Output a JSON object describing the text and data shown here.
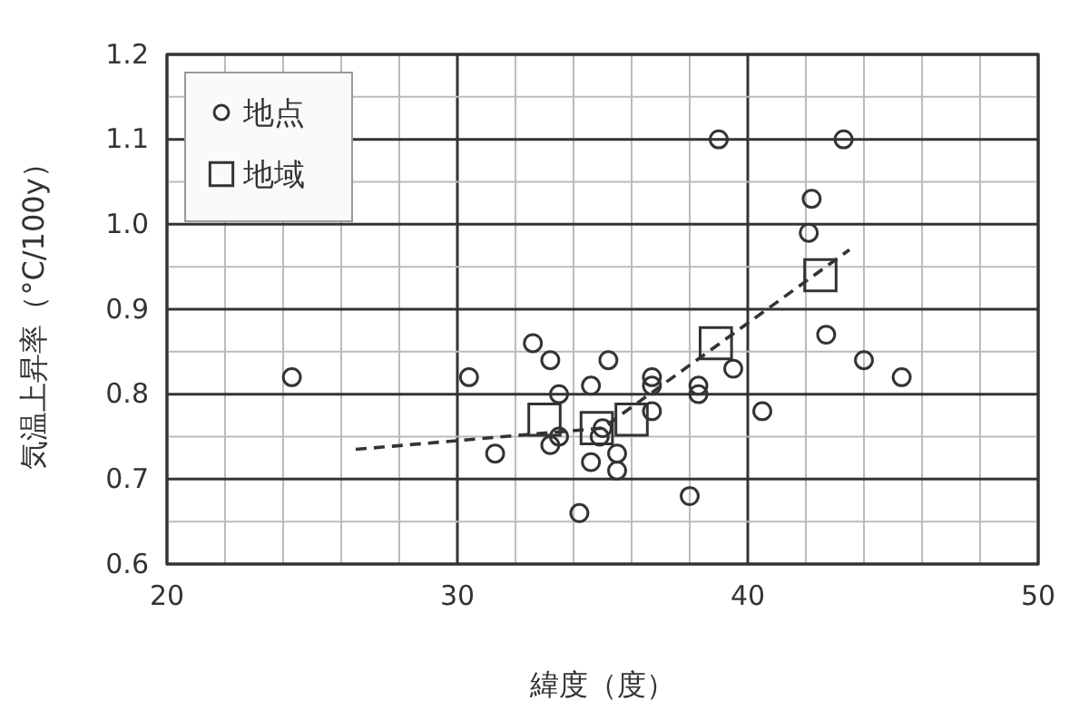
{
  "chart_data": {
    "type": "scatter",
    "xlabel": "緯度（度）",
    "ylabel": "気温上昇率（°C/100y）",
    "xlim": [
      20,
      50
    ],
    "ylim": [
      0.6,
      1.2
    ],
    "xticks": [
      20,
      {
        "value": 22,
        "label": null
      },
      {
        "value": 24,
        "label": null
      },
      {
        "value": 26,
        "label": null
      },
      {
        "value": 28,
        "label": null
      },
      30,
      {
        "value": 32,
        "label": null
      },
      {
        "value": 34,
        "label": null
      },
      {
        "value": 36,
        "label": null
      },
      {
        "value": 38,
        "label": null
      },
      40,
      {
        "value": 42,
        "label": null
      },
      {
        "value": 44,
        "label": null
      },
      {
        "value": 46,
        "label": null
      },
      {
        "value": 48,
        "label": null
      },
      50
    ],
    "yticks": [
      0.6,
      {
        "value": 0.65,
        "label": null
      },
      0.7,
      {
        "value": 0.75,
        "label": null
      },
      0.8,
      {
        "value": 0.85,
        "label": null
      },
      0.9,
      {
        "value": 0.95,
        "label": null
      },
      {
        "value": 1.0,
        "label": "1.0"
      },
      {
        "value": 1.05,
        "label": null
      },
      1.1,
      {
        "value": 1.15,
        "label": null
      },
      1.2
    ],
    "grid": true,
    "legend": "top left",
    "series": [
      {
        "name": "地点",
        "color": "#333333",
        "marker": "circle",
        "x": [
          24.3,
          30.4,
          31.3,
          32.6,
          33.2,
          34.6,
          33.5,
          33.5,
          33.2,
          34.6,
          34.2,
          35.2,
          34.9,
          35.0,
          35.5,
          35.5,
          36.7,
          36.7,
          36.7,
          38.3,
          38.3,
          39.5,
          40.5,
          42.7,
          44.0,
          45.3,
          38.0,
          39.0,
          43.3,
          42.2,
          42.1
        ],
        "values": [
          0.82,
          0.82,
          0.73,
          0.86,
          0.84,
          0.81,
          0.8,
          0.75,
          0.74,
          0.72,
          0.66,
          0.84,
          0.75,
          0.76,
          0.73,
          0.71,
          0.82,
          0.81,
          0.78,
          0.81,
          0.8,
          0.83,
          0.78,
          0.87,
          0.84,
          0.82,
          0.68,
          1.1,
          1.1,
          1.03,
          0.99
        ]
      },
      {
        "name": "地域",
        "color": "#333333",
        "marker": "square",
        "x": [
          33.0,
          34.8,
          36.0,
          38.9,
          42.5
        ],
        "values": [
          0.77,
          0.76,
          0.77,
          0.86,
          0.94
        ]
      },
      {
        "type": "line",
        "color": "#333333",
        "line_style": "dashed",
        "marker": "none",
        "x": [
          26.5,
          35.0,
          43.5
        ],
        "values": [
          0.735,
          0.76,
          0.97
        ]
      }
    ]
  }
}
